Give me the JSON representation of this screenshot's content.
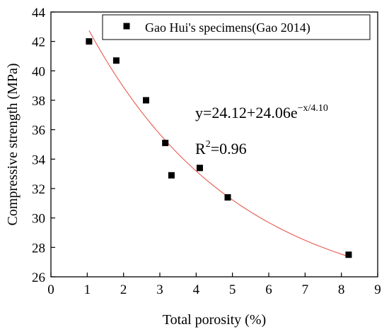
{
  "chart_data": {
    "type": "scatter",
    "xlabel": "Total porosity (%)",
    "ylabel": "Compressive strength (MPa)",
    "xlim": [
      0,
      9
    ],
    "ylim": [
      26,
      44
    ],
    "x_ticks": [
      0,
      1,
      2,
      3,
      4,
      5,
      6,
      7,
      8,
      9
    ],
    "y_ticks": [
      26,
      28,
      30,
      32,
      34,
      36,
      38,
      40,
      42,
      44
    ],
    "legend": {
      "label": "Gao Hui's specimens(Gao 2014)",
      "placement": "top-right"
    },
    "series": [
      {
        "name": "Gao Hui's specimens(Gao 2014)",
        "marker": "square",
        "color": "#000000",
        "x": [
          1.05,
          1.8,
          2.62,
          3.15,
          3.32,
          4.1,
          4.87,
          8.2
        ],
        "y": [
          42.0,
          40.7,
          38.0,
          35.1,
          32.9,
          33.4,
          31.4,
          27.5
        ]
      }
    ],
    "fit": {
      "color": "#e8584f",
      "x_range": [
        1.05,
        8.2
      ],
      "a": 24.12,
      "b": 24.06,
      "c": 4.1
    },
    "annotation": {
      "equation_main": "y=24.12+24.06e",
      "equation_exp": "−x/4.10",
      "r2_prefix": "R",
      "r2_sup": "2",
      "r2_value": "=0.96"
    }
  }
}
